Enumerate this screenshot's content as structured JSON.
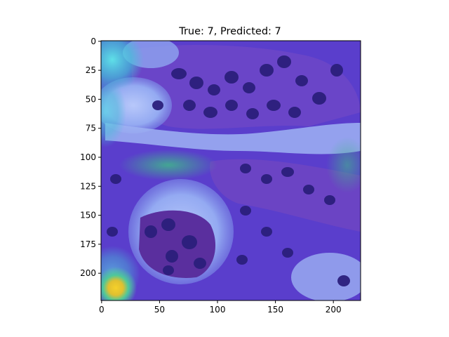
{
  "figure": {
    "title": "True: 7, Predicted: 7",
    "x_ticks": [
      "0",
      "50",
      "100",
      "150",
      "200"
    ],
    "y_ticks": [
      "0",
      "25",
      "50",
      "75",
      "100",
      "125",
      "150",
      "175",
      "200"
    ],
    "image_extent": {
      "x": [
        0,
        223
      ],
      "y": [
        0,
        223
      ]
    }
  },
  "image": {
    "description_icon": "histology-heatmap-image",
    "colors": {
      "background_purple": "#5b3fd0",
      "nuclei": "#2a1f7a",
      "stroma_pink": "#8a4fc8",
      "lumen_light": "#9fb6f5",
      "heat_cyan": "#4fd6e0",
      "heat_green": "#3fb88a",
      "heat_yellow": "#f2c82a"
    }
  }
}
